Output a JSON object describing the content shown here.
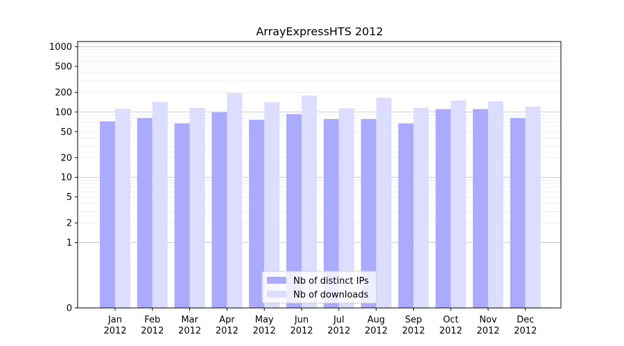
{
  "chart_data": {
    "type": "bar",
    "title": "ArrayExpressHTS 2012",
    "xlabel": "",
    "ylabel": "",
    "yscale": "symlog",
    "ylim": [
      0,
      1200
    ],
    "yticks": [
      0,
      1,
      2,
      5,
      10,
      20,
      50,
      100,
      200,
      500,
      1000
    ],
    "grid": true,
    "legend_position": "bottom-center",
    "categories": [
      "Jan\n2012",
      "Feb\n2012",
      "Mar\n2012",
      "Apr\n2012",
      "May\n2012",
      "Jun\n2012",
      "Jul\n2012",
      "Aug\n2012",
      "Sep\n2012",
      "Oct\n2012",
      "Nov\n2012",
      "Dec\n2012"
    ],
    "series": [
      {
        "name": "Nb of distinct IPs",
        "color": "#aaaaff",
        "values": [
          72,
          81,
          67,
          99,
          76,
          93,
          78,
          78,
          67,
          111,
          111,
          81
        ]
      },
      {
        "name": "Nb of downloads",
        "color": "#ddddff",
        "values": [
          112,
          143,
          116,
          195,
          141,
          179,
          114,
          166,
          116,
          150,
          146,
          121
        ]
      }
    ]
  }
}
